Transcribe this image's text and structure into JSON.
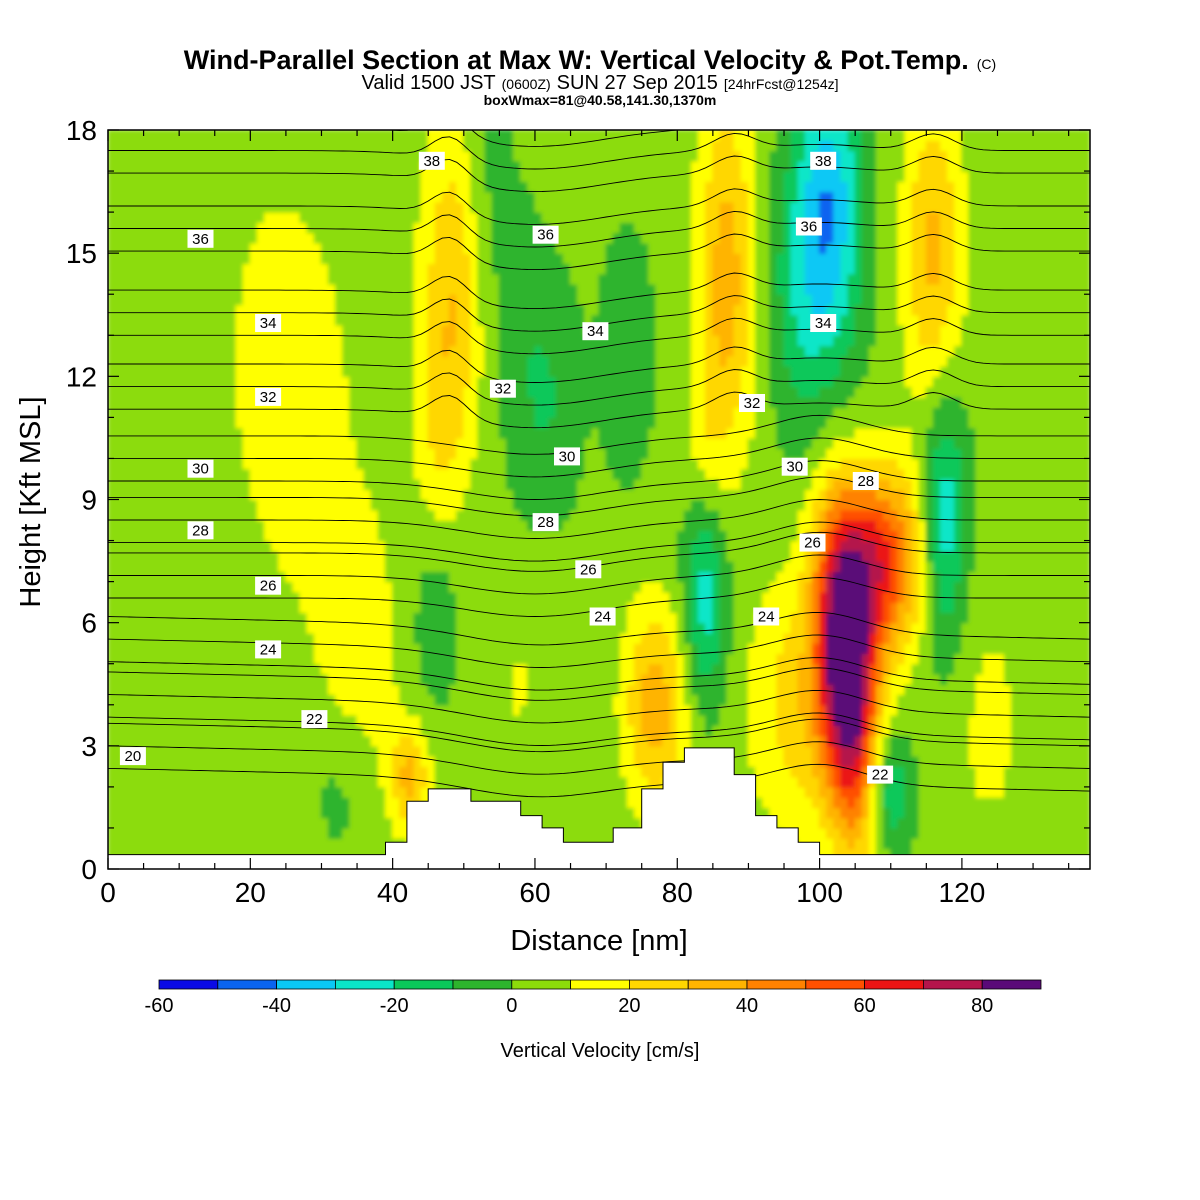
{
  "title": {
    "main": "Wind-Parallel Section at Max W: Vertical Velocity & Pot.Temp.",
    "main_suffix": "(C)",
    "sub_a": "Valid 1500 JST",
    "sub_b": "(0600Z)",
    "sub_c": "SUN 27 Sep 2015",
    "sub_d": "[24hrFcst@1254z]",
    "sub2": "boxWmax=81@40.58,141.30,1370m"
  },
  "chart_data": {
    "type": "heatmap",
    "title": "Wind-Parallel Section at Max W: Vertical Velocity & Pot.Temp.",
    "xlabel": "Distance [nm]",
    "ylabel": "Height [Kft MSL]",
    "xlim": [
      0,
      138
    ],
    "ylim": [
      0,
      18
    ],
    "x_ticks": [
      "0",
      "20",
      "40",
      "60",
      "80",
      "100",
      "120"
    ],
    "y_ticks": [
      "0",
      "3",
      "6",
      "9",
      "12",
      "15",
      "18"
    ],
    "colorbar": {
      "label": "Vertical Velocity [cm/s]",
      "levels": [
        -60,
        -50,
        -40,
        -30,
        -20,
        -10,
        0,
        10,
        20,
        30,
        40,
        50,
        60,
        70,
        80,
        90
      ],
      "tick_labels": [
        "-60",
        "-40",
        "-20",
        "0",
        "20",
        "40",
        "60",
        "80"
      ],
      "colors": [
        "#0a0ae6",
        "#0a64f0",
        "#0ac8f5",
        "#0ae6c8",
        "#0ac85a",
        "#2db42d",
        "#8cdc0a",
        "#ffff00",
        "#ffd700",
        "#ffb400",
        "#ff8200",
        "#ff5000",
        "#eb1414",
        "#b4144b",
        "#5a0a78"
      ]
    },
    "w_features": [
      {
        "kind": "updraft",
        "x": 103.5,
        "y": 4.5,
        "max_cms": 81
      },
      {
        "kind": "updraft",
        "x": 108.5,
        "y": 7.5,
        "max_cms": 60
      },
      {
        "kind": "updraft",
        "x": 76.5,
        "y": 4.0,
        "max_cms": 35
      },
      {
        "kind": "updraft",
        "x": 42.5,
        "y": 2.2,
        "max_cms": 25
      },
      {
        "kind": "updraft",
        "x": 48.5,
        "y": 14.0,
        "max_cms": 28
      },
      {
        "kind": "updraft",
        "x": 87.0,
        "y": 14.5,
        "max_cms": 30
      },
      {
        "kind": "updraft",
        "x": 116.0,
        "y": 15.0,
        "max_cms": 28
      },
      {
        "kind": "downdraft",
        "x": 101.5,
        "y": 16.0,
        "min_cms": -35
      },
      {
        "kind": "downdraft",
        "x": 117.5,
        "y": 8.5,
        "min_cms": -30
      },
      {
        "kind": "downdraft",
        "x": 84.0,
        "y": 6.8,
        "min_cms": -25
      },
      {
        "kind": "downdraft",
        "x": 109.5,
        "y": 1.9,
        "min_cms": -25
      }
    ],
    "theta_contours": {
      "units": "C",
      "levels": [
        20,
        22,
        24,
        26,
        28,
        30,
        32,
        34,
        36,
        38
      ],
      "labels": [
        {
          "text": "20",
          "x": 3.5,
          "y": 2.75
        },
        {
          "text": "22",
          "x": 29.0,
          "y": 3.65
        },
        {
          "text": "22",
          "x": 108.5,
          "y": 2.3
        },
        {
          "text": "24",
          "x": 22.5,
          "y": 5.35
        },
        {
          "text": "24",
          "x": 69.5,
          "y": 6.15
        },
        {
          "text": "24",
          "x": 92.5,
          "y": 6.15
        },
        {
          "text": "26",
          "x": 22.5,
          "y": 6.9
        },
        {
          "text": "26",
          "x": 67.5,
          "y": 7.3
        },
        {
          "text": "26",
          "x": 99.0,
          "y": 7.95
        },
        {
          "text": "28",
          "x": 13.0,
          "y": 8.25
        },
        {
          "text": "28",
          "x": 61.5,
          "y": 8.45
        },
        {
          "text": "28",
          "x": 106.5,
          "y": 9.45
        },
        {
          "text": "30",
          "x": 13.0,
          "y": 9.75
        },
        {
          "text": "30",
          "x": 64.5,
          "y": 10.05
        },
        {
          "text": "30",
          "x": 96.5,
          "y": 9.8
        },
        {
          "text": "32",
          "x": 22.5,
          "y": 11.5
        },
        {
          "text": "32",
          "x": 55.5,
          "y": 11.7
        },
        {
          "text": "32",
          "x": 90.5,
          "y": 11.35
        },
        {
          "text": "34",
          "x": 22.5,
          "y": 13.3
        },
        {
          "text": "34",
          "x": 68.5,
          "y": 13.1
        },
        {
          "text": "34",
          "x": 100.5,
          "y": 13.3
        },
        {
          "text": "36",
          "x": 13.0,
          "y": 15.35
        },
        {
          "text": "36",
          "x": 61.5,
          "y": 15.45
        },
        {
          "text": "36",
          "x": 98.5,
          "y": 15.65
        },
        {
          "text": "38",
          "x": 45.5,
          "y": 17.25
        },
        {
          "text": "38",
          "x": 100.5,
          "y": 17.25
        }
      ]
    },
    "terrain": [
      {
        "x": 0,
        "y": 0.35
      },
      {
        "x": 39,
        "y": 0.35
      },
      {
        "x": 39,
        "y": 0.65
      },
      {
        "x": 42,
        "y": 0.65
      },
      {
        "x": 42,
        "y": 1.65
      },
      {
        "x": 45,
        "y": 1.65
      },
      {
        "x": 45,
        "y": 1.95
      },
      {
        "x": 51,
        "y": 1.95
      },
      {
        "x": 51,
        "y": 1.65
      },
      {
        "x": 58,
        "y": 1.65
      },
      {
        "x": 58,
        "y": 1.3
      },
      {
        "x": 61,
        "y": 1.3
      },
      {
        "x": 61,
        "y": 1.0
      },
      {
        "x": 64,
        "y": 1.0
      },
      {
        "x": 64,
        "y": 0.65
      },
      {
        "x": 71,
        "y": 0.65
      },
      {
        "x": 71,
        "y": 1.0
      },
      {
        "x": 75,
        "y": 1.0
      },
      {
        "x": 75,
        "y": 1.95
      },
      {
        "x": 78,
        "y": 1.95
      },
      {
        "x": 78,
        "y": 2.6
      },
      {
        "x": 81,
        "y": 2.6
      },
      {
        "x": 81,
        "y": 2.95
      },
      {
        "x": 88,
        "y": 2.95
      },
      {
        "x": 88,
        "y": 2.3
      },
      {
        "x": 91,
        "y": 2.3
      },
      {
        "x": 91,
        "y": 1.3
      },
      {
        "x": 94,
        "y": 1.3
      },
      {
        "x": 94,
        "y": 1.0
      },
      {
        "x": 97,
        "y": 1.0
      },
      {
        "x": 97,
        "y": 0.65
      },
      {
        "x": 100,
        "y": 0.65
      },
      {
        "x": 100,
        "y": 0.35
      },
      {
        "x": 138,
        "y": 0.35
      }
    ]
  }
}
